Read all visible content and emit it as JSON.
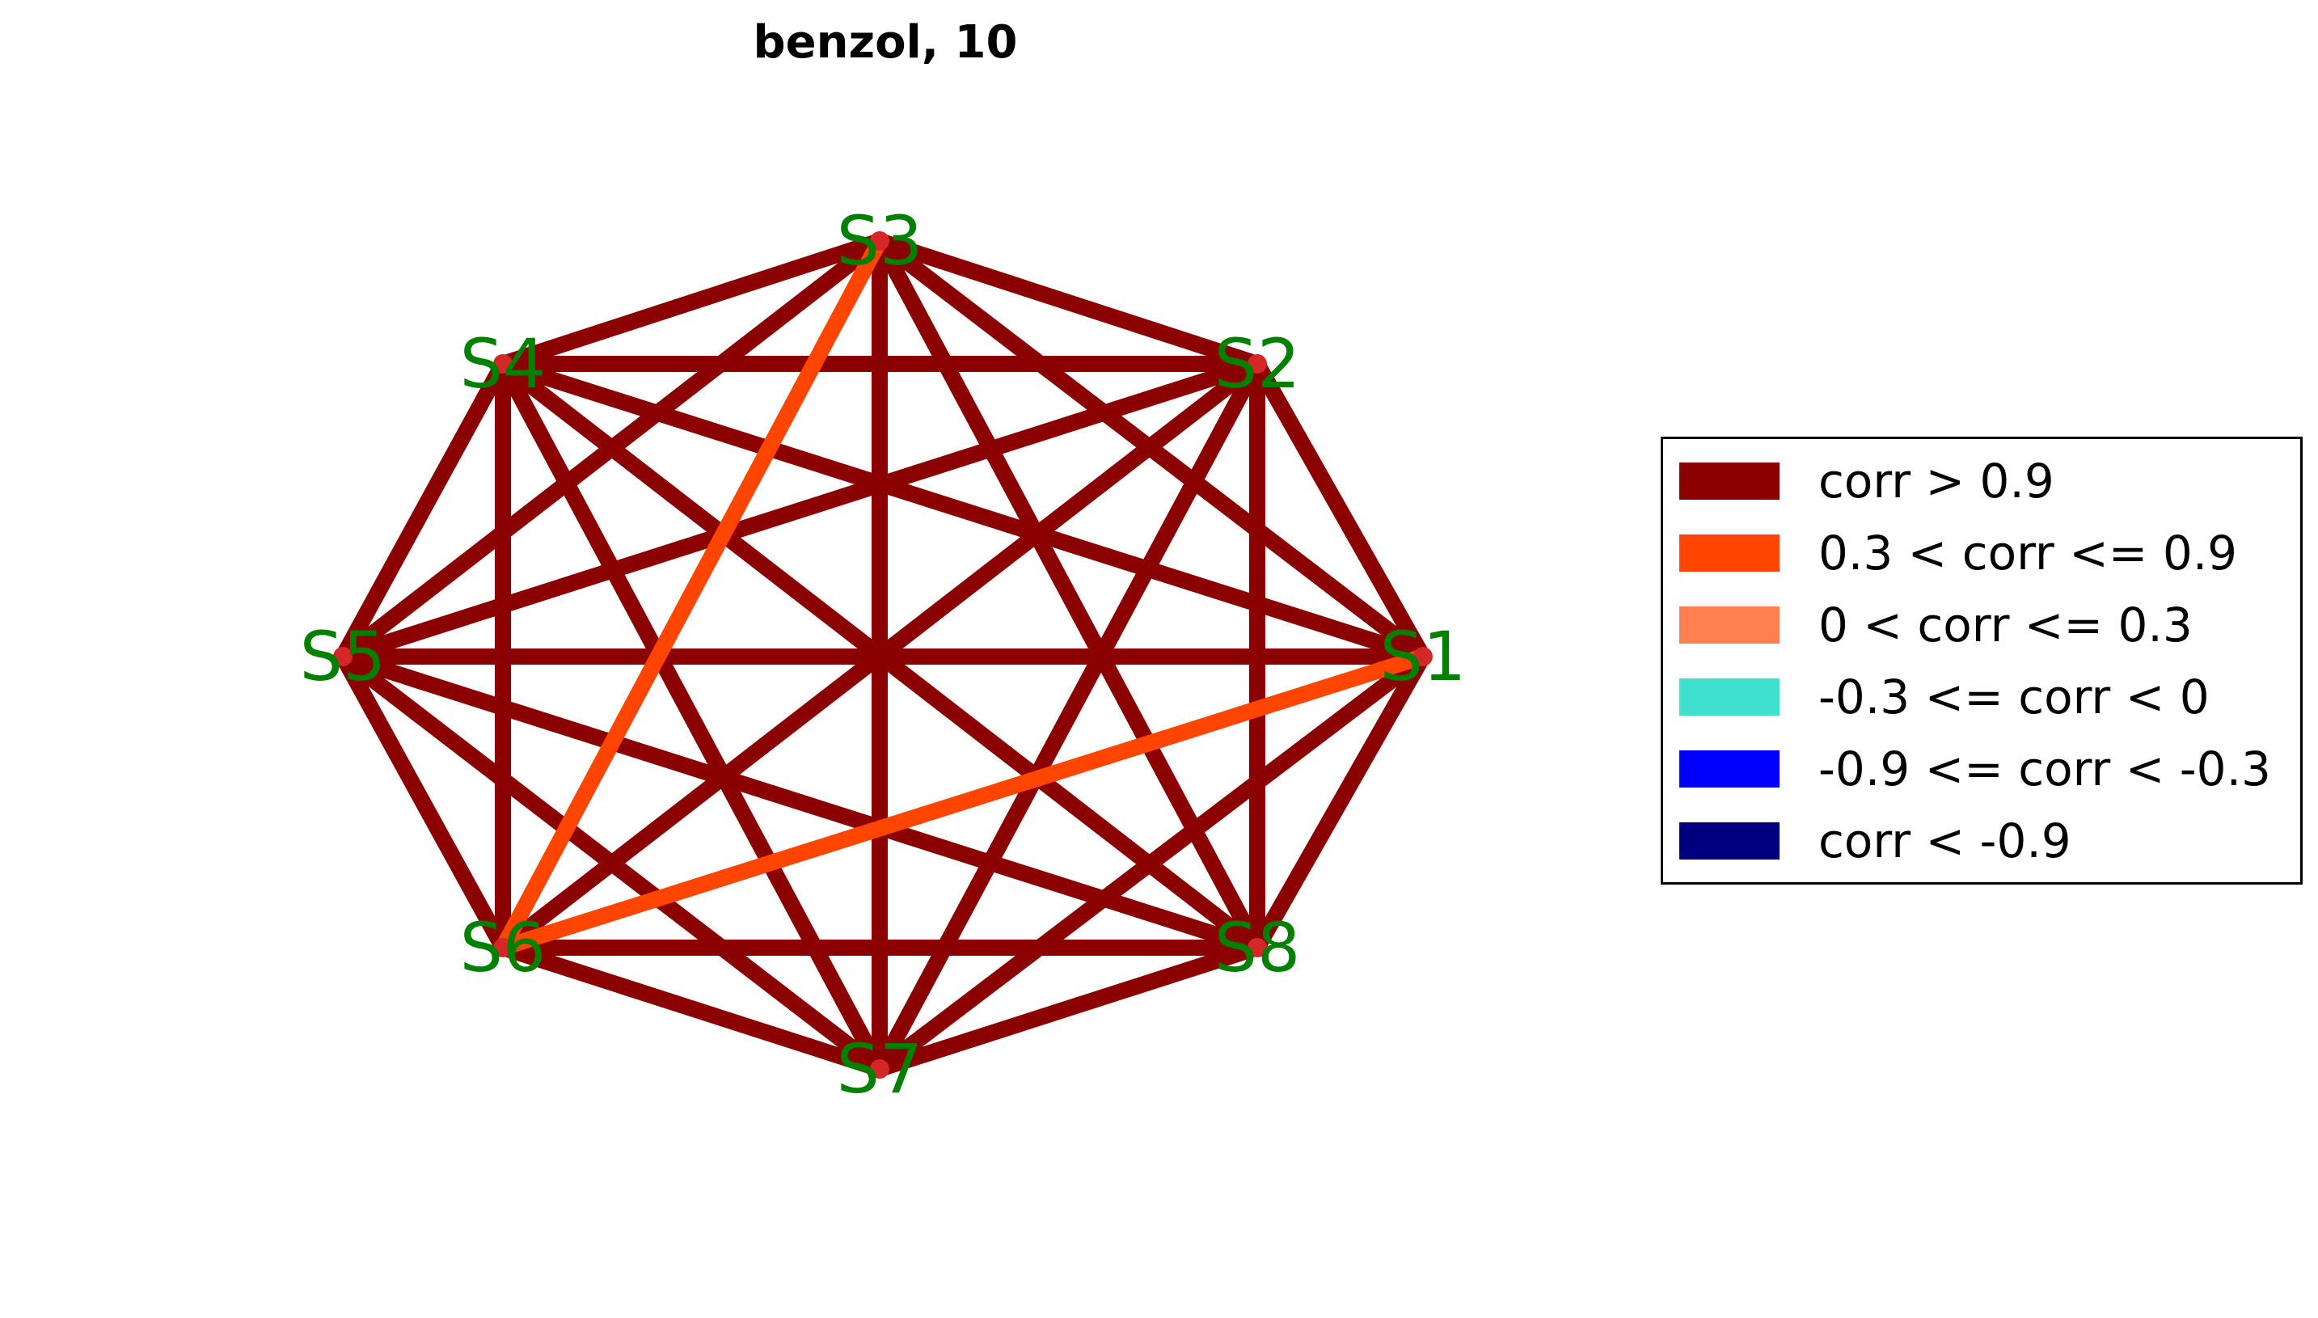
{
  "title": "benzol, 10",
  "nodes": [
    "S1",
    "S2",
    "S3",
    "S4",
    "S5",
    "S6",
    "S7",
    "S8"
  ],
  "edges": [
    {
      "a": "S1",
      "b": "S2",
      "cls": "high"
    },
    {
      "a": "S1",
      "b": "S3",
      "cls": "high"
    },
    {
      "a": "S1",
      "b": "S4",
      "cls": "high"
    },
    {
      "a": "S1",
      "b": "S5",
      "cls": "high"
    },
    {
      "a": "S1",
      "b": "S6",
      "cls": "mid"
    },
    {
      "a": "S1",
      "b": "S7",
      "cls": "high"
    },
    {
      "a": "S1",
      "b": "S8",
      "cls": "high"
    },
    {
      "a": "S2",
      "b": "S3",
      "cls": "high"
    },
    {
      "a": "S2",
      "b": "S4",
      "cls": "high"
    },
    {
      "a": "S2",
      "b": "S5",
      "cls": "high"
    },
    {
      "a": "S2",
      "b": "S6",
      "cls": "high"
    },
    {
      "a": "S2",
      "b": "S7",
      "cls": "high"
    },
    {
      "a": "S2",
      "b": "S8",
      "cls": "high"
    },
    {
      "a": "S3",
      "b": "S4",
      "cls": "high"
    },
    {
      "a": "S3",
      "b": "S5",
      "cls": "high"
    },
    {
      "a": "S3",
      "b": "S6",
      "cls": "mid"
    },
    {
      "a": "S3",
      "b": "S7",
      "cls": "high"
    },
    {
      "a": "S3",
      "b": "S8",
      "cls": "high"
    },
    {
      "a": "S4",
      "b": "S5",
      "cls": "high"
    },
    {
      "a": "S4",
      "b": "S6",
      "cls": "high"
    },
    {
      "a": "S4",
      "b": "S7",
      "cls": "high"
    },
    {
      "a": "S4",
      "b": "S8",
      "cls": "high"
    },
    {
      "a": "S5",
      "b": "S6",
      "cls": "high"
    },
    {
      "a": "S5",
      "b": "S7",
      "cls": "high"
    },
    {
      "a": "S5",
      "b": "S8",
      "cls": "high"
    },
    {
      "a": "S6",
      "b": "S7",
      "cls": "high"
    },
    {
      "a": "S6",
      "b": "S8",
      "cls": "high"
    },
    {
      "a": "S7",
      "b": "S8",
      "cls": "high"
    }
  ],
  "legend": [
    {
      "key": "high",
      "label": "corr > 0.9",
      "color": "#8b0000"
    },
    {
      "key": "mid",
      "label": "0.3 < corr <= 0.9",
      "color": "#ff4500"
    },
    {
      "key": "low",
      "label": "0 < corr <= 0.3",
      "color": "#ff7f50"
    },
    {
      "key": "neg_low",
      "label": "-0.3 <= corr < 0",
      "color": "#40e0d0"
    },
    {
      "key": "neg_mid",
      "label": "-0.9 <= corr < -0.3",
      "color": "#0000ff"
    },
    {
      "key": "neg_high",
      "label": "corr < -0.9",
      "color": "#000080"
    }
  ],
  "colors": {
    "node_label": "#008000",
    "node_dot": "#d62728"
  }
}
